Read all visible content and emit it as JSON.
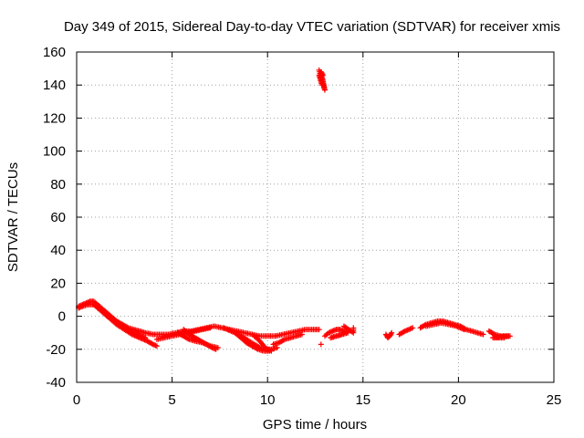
{
  "chart_data": {
    "type": "scatter",
    "title": "Day 349 of 2015, Sidereal Day-to-day VTEC variation (SDTVAR) for receiver xmis",
    "xlabel": "GPS time / hours",
    "ylabel": "SDTVAR / TECUs",
    "xlim": [
      0,
      25
    ],
    "ylim": [
      -40,
      160
    ],
    "xticks": [
      "0",
      "5",
      "10",
      "15",
      "20",
      "25"
    ],
    "yticks": [
      "-40",
      "-20",
      "0",
      "20",
      "40",
      "60",
      "80",
      "100",
      "120",
      "140",
      "160"
    ],
    "grid": true,
    "marker": "+",
    "color": "#ff0000",
    "series": [
      {
        "name": "SDTVAR",
        "segments": [
          [
            [
              0.1,
              6
            ],
            [
              0.3,
              7
            ],
            [
              0.5,
              8
            ],
            [
              0.7,
              9
            ],
            [
              0.9,
              9
            ],
            [
              1.1,
              7
            ],
            [
              1.3,
              5
            ],
            [
              1.5,
              3
            ],
            [
              1.8,
              0
            ],
            [
              2.1,
              -3
            ],
            [
              2.4,
              -5
            ],
            [
              2.7,
              -7
            ],
            [
              3.0,
              -8
            ],
            [
              3.3,
              -9
            ],
            [
              3.6,
              -10
            ],
            [
              4.0,
              -11
            ],
            [
              4.4,
              -11
            ],
            [
              4.8,
              -11
            ],
            [
              5.2,
              -10
            ],
            [
              5.6,
              -9
            ],
            [
              6.0,
              -9
            ],
            [
              6.4,
              -8
            ],
            [
              6.8,
              -7
            ],
            [
              7.2,
              -6
            ],
            [
              7.6,
              -7
            ],
            [
              8.0,
              -8
            ],
            [
              8.4,
              -9
            ],
            [
              8.8,
              -10
            ],
            [
              9.2,
              -11
            ],
            [
              9.6,
              -12
            ],
            [
              10.0,
              -12
            ],
            [
              10.4,
              -12
            ],
            [
              10.8,
              -11
            ],
            [
              11.2,
              -10
            ],
            [
              11.6,
              -9
            ],
            [
              12.0,
              -8
            ],
            [
              12.4,
              -8
            ],
            [
              12.7,
              -8
            ]
          ],
          [
            [
              0.1,
              5
            ],
            [
              0.3,
              6
            ],
            [
              0.6,
              7
            ],
            [
              0.9,
              7
            ],
            [
              1.2,
              4
            ],
            [
              1.5,
              1
            ],
            [
              1.8,
              -2
            ],
            [
              2.1,
              -5
            ],
            [
              2.5,
              -8
            ],
            [
              2.9,
              -11
            ],
            [
              3.3,
              -13
            ],
            [
              3.7,
              -15
            ],
            [
              4.0,
              -17
            ],
            [
              4.2,
              -18
            ]
          ],
          [
            [
              1.2,
              5
            ],
            [
              1.5,
              2
            ],
            [
              1.8,
              -1
            ],
            [
              2.1,
              -4
            ],
            [
              2.4,
              -6
            ],
            [
              2.8,
              -9
            ],
            [
              3.2,
              -11
            ],
            [
              3.6,
              -13
            ]
          ],
          [
            [
              4.2,
              -14
            ],
            [
              4.6,
              -13
            ],
            [
              5.0,
              -12
            ],
            [
              5.4,
              -11
            ],
            [
              5.8,
              -10
            ],
            [
              6.2,
              -9
            ],
            [
              6.6,
              -8
            ],
            [
              7.0,
              -7
            ]
          ],
          [
            [
              5.3,
              -10
            ],
            [
              5.6,
              -12
            ],
            [
              5.9,
              -14
            ],
            [
              6.2,
              -15
            ],
            [
              6.6,
              -16
            ],
            [
              7.0,
              -18
            ],
            [
              7.4,
              -19
            ]
          ],
          [
            [
              5.6,
              -8
            ],
            [
              5.9,
              -11
            ],
            [
              6.2,
              -13
            ],
            [
              6.5,
              -15
            ],
            [
              6.8,
              -17
            ],
            [
              7.1,
              -19
            ],
            [
              7.3,
              -20
            ]
          ],
          [
            [
              7.7,
              -7
            ],
            [
              8.1,
              -9
            ],
            [
              8.5,
              -11
            ],
            [
              8.9,
              -14
            ],
            [
              9.3,
              -17
            ],
            [
              9.6,
              -19
            ],
            [
              9.9,
              -20
            ],
            [
              10.2,
              -20
            ],
            [
              10.5,
              -19
            ]
          ],
          [
            [
              8.3,
              -10
            ],
            [
              8.6,
              -13
            ],
            [
              8.9,
              -16
            ],
            [
              9.2,
              -18
            ],
            [
              9.5,
              -20
            ],
            [
              9.8,
              -21
            ],
            [
              10.1,
              -21
            ]
          ],
          [
            [
              9.3,
              -12
            ],
            [
              9.6,
              -15
            ],
            [
              9.8,
              -18
            ],
            [
              10.0,
              -20
            ],
            [
              10.2,
              -21
            ]
          ],
          [
            [
              10.3,
              -17
            ],
            [
              10.6,
              -16
            ],
            [
              10.9,
              -14
            ],
            [
              11.2,
              -13
            ],
            [
              11.5,
              -12
            ],
            [
              11.8,
              -11
            ]
          ],
          [
            [
              12.7,
              149
            ],
            [
              12.75,
              147
            ],
            [
              12.8,
              145
            ],
            [
              12.85,
              143
            ],
            [
              12.9,
              141
            ],
            [
              12.95,
              139
            ],
            [
              13.0,
              137
            ],
            [
              12.8,
              148
            ],
            [
              12.9,
              146
            ],
            [
              12.7,
              146
            ],
            [
              12.85,
              140
            ]
          ],
          [
            [
              12.8,
              -17
            ]
          ],
          [
            [
              13.0,
              -12
            ],
            [
              13.2,
              -10
            ],
            [
              13.4,
              -9
            ],
            [
              13.6,
              -8
            ],
            [
              13.8,
              -8
            ],
            [
              14.0,
              -9
            ],
            [
              14.2,
              -10
            ],
            [
              13.3,
              -13
            ],
            [
              13.6,
              -12
            ],
            [
              13.9,
              -11
            ]
          ],
          [
            [
              14.5,
              -7
            ],
            [
              14.5,
              -10
            ],
            [
              14.0,
              -6
            ]
          ],
          [
            [
              16.2,
              -11
            ],
            [
              16.3,
              -13
            ],
            [
              16.4,
              -12
            ],
            [
              16.5,
              -10
            ]
          ],
          [
            [
              16.9,
              -11
            ],
            [
              17.2,
              -9
            ],
            [
              17.4,
              -8
            ],
            [
              17.6,
              -7
            ]
          ],
          [
            [
              18.0,
              -7
            ],
            [
              18.3,
              -5
            ],
            [
              18.6,
              -4
            ],
            [
              18.9,
              -3
            ],
            [
              19.2,
              -3
            ],
            [
              19.5,
              -4
            ],
            [
              19.8,
              -5
            ],
            [
              20.1,
              -6
            ],
            [
              20.4,
              -8
            ],
            [
              20.7,
              -9
            ],
            [
              21.0,
              -10
            ],
            [
              21.3,
              -11
            ]
          ],
          [
            [
              18.3,
              -6
            ],
            [
              18.7,
              -5
            ],
            [
              19.1,
              -4
            ],
            [
              19.5,
              -5
            ],
            [
              19.9,
              -6
            ],
            [
              20.3,
              -8
            ]
          ],
          [
            [
              21.6,
              -9
            ],
            [
              21.9,
              -11
            ],
            [
              22.2,
              -12
            ],
            [
              22.5,
              -12
            ],
            [
              22.7,
              -12
            ],
            [
              21.8,
              -13
            ],
            [
              22.1,
              -13
            ],
            [
              22.4,
              -13
            ]
          ]
        ]
      }
    ]
  }
}
